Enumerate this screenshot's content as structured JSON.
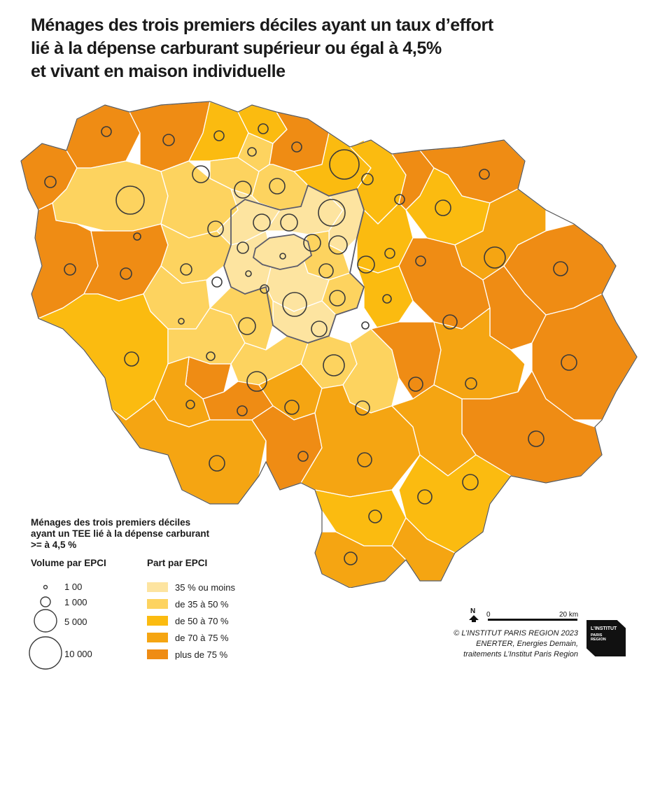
{
  "title": {
    "line1": "Ménages des trois premiers déciles ayant un taux d’effort",
    "line2": "lié à la dépense carburant supérieur ou égal à 4,5%",
    "line3": "et vivant en maison individuelle"
  },
  "colors": {
    "c1": "#fde4a0",
    "c2": "#fdd35f",
    "c3": "#fbbb10",
    "c4": "#f5a512",
    "c5": "#ef8c14",
    "border": "#4a4a4a",
    "paris_border": "#5c5c6a"
  },
  "legend": {
    "title_line1": "Ménages des trois premiers déciles",
    "title_line2": "ayant un TEE lié à la dépense carburant",
    "title_line3": ">= à 4,5 %",
    "volume_title": "Volume par EPCI",
    "volume_items": [
      {
        "label": "1 00",
        "value": 100
      },
      {
        "label": "1 000",
        "value": 1000
      },
      {
        "label": "5 000",
        "value": 5000
      },
      {
        "label": "10 000",
        "value": 10000
      }
    ],
    "part_title": "Part par EPCI",
    "part_items": [
      {
        "label": "35 % ou moins",
        "color": "#fde4a0"
      },
      {
        "label": "de 35 à  50 %",
        "color": "#fdd35f"
      },
      {
        "label": "de 50 à 70 %",
        "color": "#fbbb10"
      },
      {
        "label": "de 70 à 75 %",
        "color": "#f5a512"
      },
      {
        "label": "plus de 75 %",
        "color": "#ef8c14"
      }
    ]
  },
  "scale": {
    "north": "N",
    "start": "0",
    "end": "20 km"
  },
  "credits": {
    "line1": "© L’INSTITUT PARIS REGION 2023",
    "line2": "ENERTER, Energies Demain,",
    "line3": "traitements L’Institut Paris Region"
  },
  "logo": {
    "line1": "L’INSTITUT",
    "line2": "PARIS",
    "line3": "REGION"
  }
}
